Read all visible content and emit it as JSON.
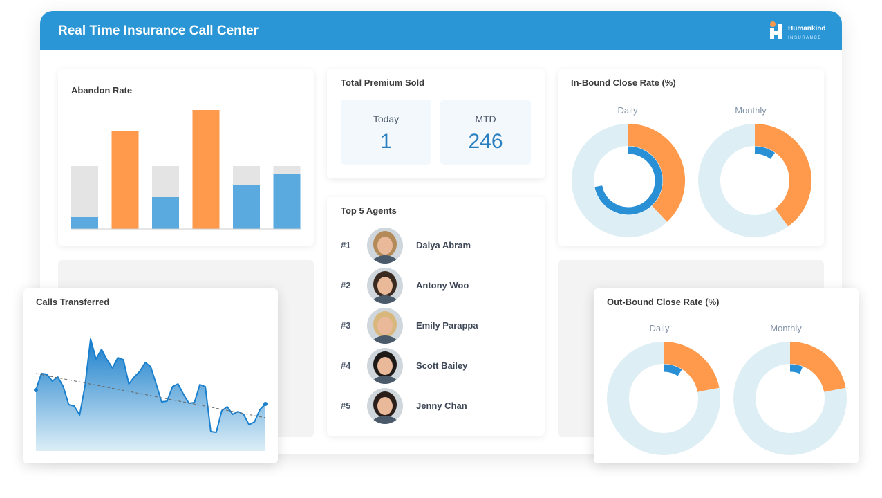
{
  "header": {
    "title": "Real Time Insurance Call Center",
    "logo_text": "Humankind",
    "logo_sub": "INSURANCE"
  },
  "abandon_rate": {
    "title": "Abandon Rate",
    "bars": [
      {
        "type": "split",
        "total": 91,
        "value": 17
      },
      {
        "type": "highlight",
        "value": 141
      },
      {
        "type": "split",
        "total": 91,
        "value": 46
      },
      {
        "type": "highlight",
        "value": 172
      },
      {
        "type": "split",
        "total": 91,
        "value": 63
      },
      {
        "type": "split",
        "total": 91,
        "value": 80
      }
    ],
    "colors": {
      "blue": "#5aa9df",
      "orange": "#ff9a4d",
      "grey": "#e4e4e4"
    }
  },
  "premium": {
    "title": "Total Premium Sold",
    "today_label": "Today",
    "today_value": "1",
    "mtd_label": "MTD",
    "mtd_value": "246"
  },
  "agents": {
    "title": "Top 5 Agents",
    "items": [
      {
        "rank": "#1",
        "name": "Daiya Abram",
        "hair": "#b38a58"
      },
      {
        "rank": "#2",
        "name": "Antony Woo",
        "hair": "#3b2a20"
      },
      {
        "rank": "#3",
        "name": "Emily Parappa",
        "hair": "#d8b77c"
      },
      {
        "rank": "#4",
        "name": "Scott Bailey",
        "hair": "#1e1a18"
      },
      {
        "rank": "#5",
        "name": "Jenny Chan",
        "hair": "#2a1f1b"
      }
    ]
  },
  "inbound": {
    "title": "In-Bound Close Rate (%)",
    "daily_label": "Daily",
    "monthly_label": "Monthly",
    "daily": {
      "outer": 0.38,
      "inner": 0.72
    },
    "monthly": {
      "outer": 0.4,
      "inner": 0.1
    }
  },
  "outbound": {
    "title": "Out-Bound Close Rate (%)",
    "daily_label": "Daily",
    "monthly_label": "Monthly",
    "daily": {
      "outer": 0.22,
      "inner": 0.09
    },
    "monthly": {
      "outer": 0.22,
      "inner": 0.06
    }
  },
  "calls": {
    "title": "Calls Transferred",
    "values": [
      88,
      112,
      111,
      101,
      107,
      93,
      67,
      65,
      52,
      95,
      162,
      133,
      147,
      132,
      120,
      135,
      132,
      97,
      107,
      115,
      128,
      122,
      97,
      71,
      72,
      93,
      97,
      82,
      69,
      70,
      96,
      93,
      28,
      27,
      58,
      64,
      53,
      57,
      53,
      38,
      42,
      60,
      68
    ],
    "trend": [
      112,
      48
    ]
  }
}
